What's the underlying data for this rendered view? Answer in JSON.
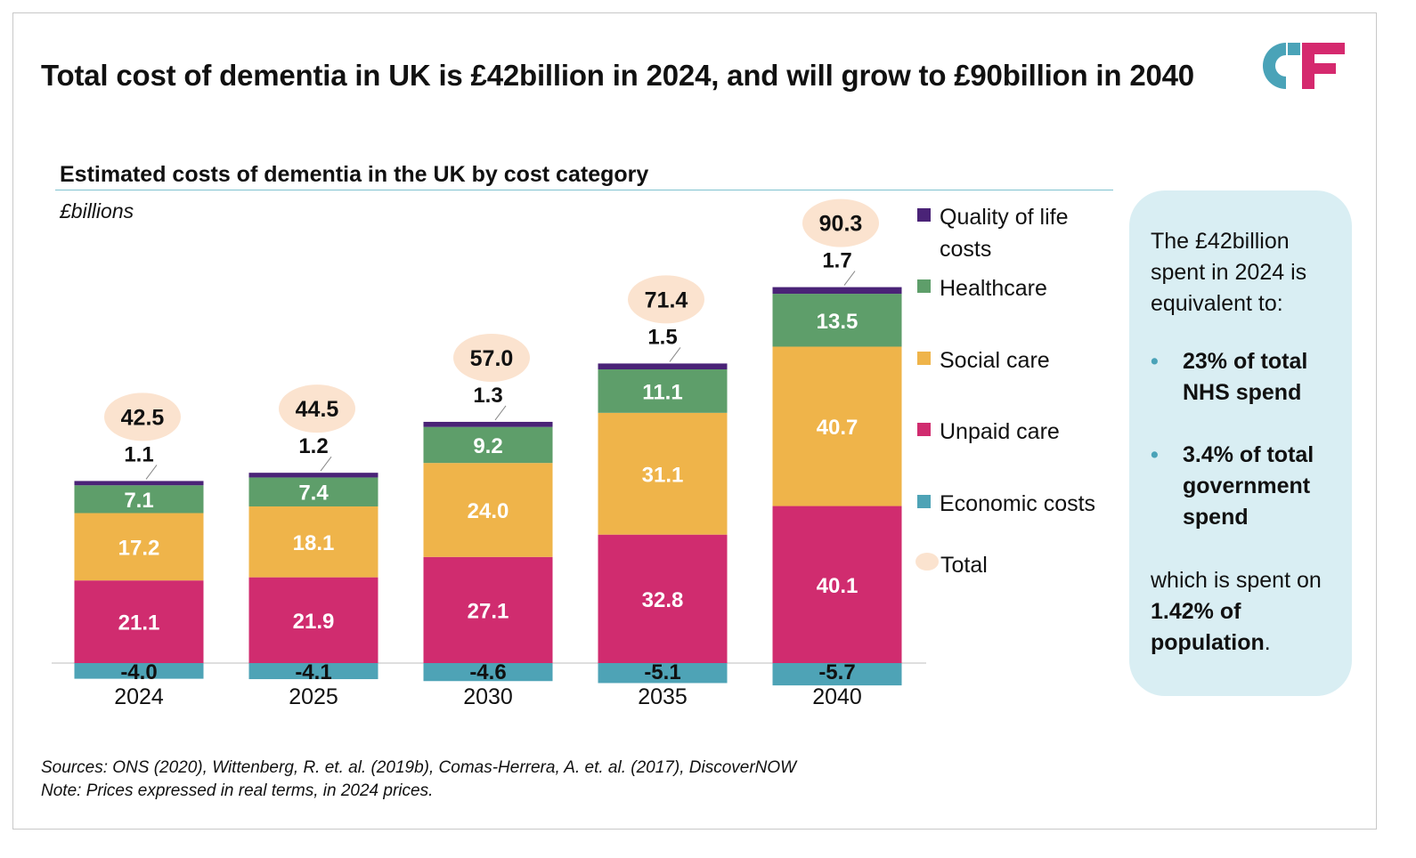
{
  "header": {
    "title": "Total cost of dementia in UK is £42billion in 2024, and will grow to £90billion in 2040"
  },
  "logo": {
    "icon": "cf-logo-icon",
    "letters": "CF",
    "colors": {
      "c": "#4aa3b8",
      "f": "#d5296e"
    }
  },
  "chart_header": {
    "subtitle": "Estimated costs of dementia in the UK by cost category",
    "unit": "£billions"
  },
  "chart_data": {
    "type": "bar",
    "stacked": true,
    "title": "Estimated costs of dementia in the UK by cost category",
    "ylabel": "£billions",
    "categories": [
      "2024",
      "2025",
      "2030",
      "2035",
      "2040"
    ],
    "series": [
      {
        "name": "Economic costs",
        "color": "#4ea3b6",
        "values": [
          -4.0,
          -4.1,
          -4.6,
          -5.1,
          -5.7
        ],
        "labels": [
          "-4.0",
          "-4.1",
          "-4.6",
          "-5.1",
          "-5.7"
        ]
      },
      {
        "name": "Unpaid care",
        "color": "#d02c6f",
        "values": [
          21.1,
          21.9,
          27.1,
          32.8,
          40.1
        ],
        "labels": [
          "21.1",
          "21.9",
          "27.1",
          "32.8",
          "40.1"
        ]
      },
      {
        "name": "Social care",
        "color": "#efb44a",
        "values": [
          17.2,
          18.1,
          24.0,
          31.1,
          40.7
        ],
        "labels": [
          "17.2",
          "18.1",
          "24.0",
          "31.1",
          "40.7"
        ]
      },
      {
        "name": "Healthcare",
        "color": "#5e9e6a",
        "values": [
          7.1,
          7.4,
          9.2,
          11.1,
          13.5
        ],
        "labels": [
          "7.1",
          "7.4",
          "9.2",
          "11.1",
          "13.5"
        ]
      },
      {
        "name": "Quality of life costs",
        "color": "#4a2377",
        "values": [
          1.1,
          1.2,
          1.3,
          1.5,
          1.7
        ],
        "labels": [
          "1.1",
          "1.2",
          "1.3",
          "1.5",
          "1.7"
        ]
      }
    ],
    "totals": [
      42.5,
      44.5,
      57.0,
      71.4,
      90.3
    ],
    "total_labels": [
      "42.5",
      "44.5",
      "57.0",
      "71.4",
      "90.3"
    ],
    "total_color": "#fbe3cf",
    "ylim": [
      -6,
      92
    ]
  },
  "legend": {
    "items": [
      {
        "label": "Quality of life costs",
        "color": "#4a2377",
        "shape": "square"
      },
      {
        "label": "Healthcare",
        "color": "#5e9e6a",
        "shape": "square"
      },
      {
        "label": "Social care",
        "color": "#efb44a",
        "shape": "square"
      },
      {
        "label": "Unpaid care",
        "color": "#d02c6f",
        "shape": "square"
      },
      {
        "label": "Economic costs",
        "color": "#4ea3b6",
        "shape": "square"
      },
      {
        "label": "Total",
        "color": "#fbe3cf",
        "shape": "circle"
      }
    ]
  },
  "infobox": {
    "intro": "The £42billion spent in 2024 is equivalent to:",
    "bullets": [
      "23% of total NHS spend",
      "3.4% of total government spend"
    ],
    "after_prefix": "which is spent on ",
    "after_bold": "1.42% of population",
    "after_suffix": "."
  },
  "footer": {
    "sources": "Sources: ONS (2020), Wittenberg, R. et. al. (2019b), Comas-Herrera, A. et. al. (2017), DiscoverNOW",
    "note": "Note: Prices expressed in real terms, in 2024 prices."
  }
}
